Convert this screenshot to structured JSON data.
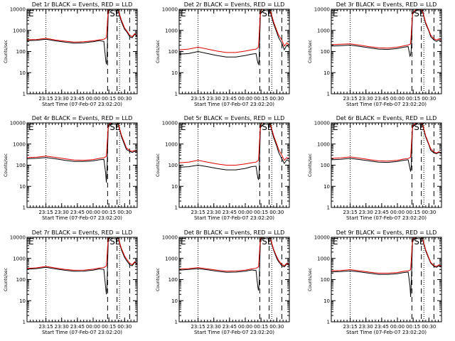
{
  "colors": {
    "events": "#000000",
    "lld": "#e00000",
    "axes": "#000000",
    "background": "#ffffff"
  },
  "layout": {
    "columns": 3,
    "rows": 3
  },
  "shared": {
    "x_tick_labels": [
      "23:15",
      "23:30",
      "23:45",
      "00:00",
      "00:15",
      "00:30"
    ],
    "x_tick_hours": [
      23.25,
      23.5,
      23.75,
      24.0,
      24.25,
      24.5
    ],
    "x_range_hours": [
      22.95,
      24.7
    ],
    "y_tick_labels": [
      "1",
      "10",
      "100",
      "1000",
      "10000"
    ],
    "y_tick_values": [
      1,
      10,
      100,
      1000,
      10000
    ],
    "y_range": [
      1,
      10000
    ],
    "y_scale": "log",
    "xlabel": "Start Time (07-Feb-07 23:02:20)",
    "ylabel": "Counts/sec",
    "dotted_line_hours": [
      23.25,
      24.42
    ],
    "dashed_line_hours": [
      24.23,
      24.38,
      24.58
    ],
    "annotations": [
      "E",
      "SE"
    ]
  },
  "chart_data": [
    {
      "type": "line",
      "title": "Det 1r BLACK = Events, RED = LLD",
      "series": [
        {
          "name": "Events",
          "color": "#000000",
          "x": [
            22.95,
            23.1,
            23.25,
            23.4,
            23.55,
            23.7,
            23.85,
            24.0,
            24.1,
            24.17,
            24.2,
            24.21,
            24.22,
            24.24,
            24.3,
            24.36,
            24.4,
            24.45,
            24.5,
            24.53,
            24.58,
            24.62,
            24.66,
            24.7
          ],
          "y": [
            330,
            340,
            380,
            320,
            280,
            250,
            260,
            290,
            330,
            300,
            40,
            25,
            45,
            8000,
            11000,
            12000,
            8000,
            2500,
            1100,
            900,
            500,
            450,
            650,
            500
          ]
        },
        {
          "name": "LLD",
          "color": "#e00000",
          "x": [
            22.95,
            23.1,
            23.25,
            23.4,
            23.55,
            23.7,
            23.85,
            24.0,
            24.1,
            24.17,
            24.21,
            24.24,
            24.3,
            24.36,
            24.4,
            24.45,
            24.5,
            24.53,
            24.58,
            24.62,
            24.66,
            24.7
          ],
          "y": [
            360,
            370,
            420,
            350,
            310,
            280,
            290,
            320,
            360,
            380,
            450,
            9000,
            12000,
            13000,
            9000,
            3000,
            1300,
            1000,
            600,
            500,
            700,
            550
          ]
        }
      ]
    },
    {
      "type": "line",
      "title": "Det 2r BLACK = Events, RED = LLD",
      "series": [
        {
          "name": "Events",
          "color": "#000000",
          "x": [
            22.95,
            23.1,
            23.25,
            23.4,
            23.55,
            23.7,
            23.85,
            24.0,
            24.1,
            24.17,
            24.2,
            24.21,
            24.22,
            24.24,
            24.3,
            24.36,
            24.4,
            24.45,
            24.5,
            24.53,
            24.58,
            24.62,
            24.66,
            24.7
          ],
          "y": [
            75,
            80,
            100,
            80,
            65,
            55,
            55,
            65,
            75,
            80,
            30,
            25,
            40,
            6000,
            10000,
            11000,
            7000,
            2000,
            800,
            450,
            250,
            120,
            200,
            150
          ]
        },
        {
          "name": "LLD",
          "color": "#e00000",
          "x": [
            22.95,
            23.1,
            23.25,
            23.4,
            23.55,
            23.7,
            23.85,
            24.0,
            24.1,
            24.17,
            24.21,
            24.24,
            24.3,
            24.36,
            24.4,
            24.45,
            24.5,
            24.53,
            24.58,
            24.62,
            24.66,
            24.7
          ],
          "y": [
            120,
            130,
            160,
            130,
            105,
            90,
            90,
            105,
            120,
            130,
            160,
            8000,
            12000,
            13000,
            8500,
            2500,
            1000,
            600,
            350,
            180,
            260,
            200
          ]
        }
      ]
    },
    {
      "type": "line",
      "title": "Det 3r BLACK = Events, RED = LLD",
      "series": [
        {
          "name": "Events",
          "color": "#000000",
          "x": [
            22.95,
            23.1,
            23.25,
            23.4,
            23.55,
            23.7,
            23.85,
            24.0,
            24.1,
            24.17,
            24.2,
            24.21,
            24.22,
            24.24,
            24.3,
            24.36,
            24.4,
            24.45,
            24.5,
            24.53,
            24.58,
            24.62,
            24.66,
            24.7
          ],
          "y": [
            180,
            190,
            200,
            175,
            150,
            130,
            125,
            140,
            160,
            170,
            60,
            70,
            120,
            6000,
            9000,
            10000,
            7500,
            2000,
            900,
            500,
            350,
            300,
            350,
            300
          ]
        },
        {
          "name": "LLD",
          "color": "#e00000",
          "x": [
            22.95,
            23.1,
            23.25,
            23.4,
            23.55,
            23.7,
            23.85,
            24.0,
            24.1,
            24.17,
            24.21,
            24.24,
            24.3,
            24.36,
            24.4,
            24.45,
            24.5,
            24.53,
            24.58,
            24.62,
            24.66,
            24.7
          ],
          "y": [
            210,
            220,
            230,
            200,
            170,
            150,
            145,
            160,
            185,
            200,
            230,
            7000,
            10000,
            11000,
            8000,
            2300,
            1000,
            600,
            400,
            350,
            400,
            350
          ]
        }
      ]
    },
    {
      "type": "line",
      "title": "Det 4r BLACK = Events, RED = LLD",
      "series": [
        {
          "name": "Events",
          "color": "#000000",
          "x": [
            22.95,
            23.1,
            23.25,
            23.4,
            23.55,
            23.7,
            23.85,
            24.0,
            24.1,
            24.17,
            24.2,
            24.21,
            24.22,
            24.24,
            24.3,
            24.36,
            24.4,
            24.45,
            24.5,
            24.53,
            24.58,
            24.62,
            24.66,
            24.7
          ],
          "y": [
            200,
            210,
            230,
            200,
            170,
            150,
            150,
            160,
            180,
            190,
            40,
            15,
            60,
            7000,
            10000,
            11000,
            8000,
            2200,
            900,
            550,
            450,
            400,
            450,
            400
          ]
        },
        {
          "name": "LLD",
          "color": "#e00000",
          "x": [
            22.95,
            23.1,
            23.25,
            23.4,
            23.55,
            23.7,
            23.85,
            24.0,
            24.1,
            24.17,
            24.21,
            24.24,
            24.3,
            24.36,
            24.4,
            24.45,
            24.5,
            24.53,
            24.58,
            24.62,
            24.66,
            24.7
          ],
          "y": [
            230,
            240,
            270,
            235,
            200,
            175,
            170,
            185,
            210,
            225,
            260,
            8000,
            11000,
            12000,
            9000,
            2600,
            1100,
            650,
            500,
            450,
            500,
            450
          ]
        }
      ]
    },
    {
      "type": "line",
      "title": "Det 5r BLACK = Events, RED = LLD",
      "series": [
        {
          "name": "Events",
          "color": "#000000",
          "x": [
            22.95,
            23.1,
            23.25,
            23.4,
            23.55,
            23.7,
            23.85,
            24.0,
            24.1,
            24.17,
            24.2,
            24.21,
            24.22,
            24.24,
            24.3,
            24.36,
            24.4,
            24.45,
            24.5,
            24.53,
            24.58,
            24.62,
            24.66,
            24.7
          ],
          "y": [
            80,
            85,
            100,
            85,
            70,
            60,
            60,
            70,
            85,
            90,
            25,
            20,
            40,
            6000,
            10000,
            11000,
            7500,
            2000,
            800,
            400,
            200,
            120,
            180,
            150
          ]
        },
        {
          "name": "LLD",
          "color": "#e00000",
          "x": [
            22.95,
            23.1,
            23.25,
            23.4,
            23.55,
            23.7,
            23.85,
            24.0,
            24.1,
            24.17,
            24.21,
            24.24,
            24.3,
            24.36,
            24.4,
            24.45,
            24.5,
            24.53,
            24.58,
            24.62,
            24.66,
            24.7
          ],
          "y": [
            130,
            140,
            170,
            140,
            115,
            100,
            100,
            115,
            130,
            140,
            170,
            8000,
            12000,
            13000,
            8500,
            2500,
            1000,
            550,
            300,
            170,
            230,
            200
          ]
        }
      ]
    },
    {
      "type": "line",
      "title": "Det 6r BLACK = Events, RED = LLD",
      "series": [
        {
          "name": "Events",
          "color": "#000000",
          "x": [
            22.95,
            23.1,
            23.25,
            23.4,
            23.55,
            23.7,
            23.85,
            24.0,
            24.1,
            24.17,
            24.2,
            24.21,
            24.22,
            24.24,
            24.3,
            24.36,
            24.4,
            24.45,
            24.5,
            24.53,
            24.58,
            24.62,
            24.66,
            24.7
          ],
          "y": [
            180,
            190,
            210,
            185,
            160,
            140,
            135,
            150,
            170,
            180,
            70,
            50,
            90,
            6500,
            9500,
            10500,
            7500,
            2100,
            900,
            500,
            380,
            350,
            400,
            350
          ]
        },
        {
          "name": "LLD",
          "color": "#e00000",
          "x": [
            22.95,
            23.1,
            23.25,
            23.4,
            23.55,
            23.7,
            23.85,
            24.0,
            24.1,
            24.17,
            24.21,
            24.24,
            24.3,
            24.36,
            24.4,
            24.45,
            24.5,
            24.53,
            24.58,
            24.62,
            24.66,
            24.7
          ],
          "y": [
            210,
            220,
            245,
            215,
            185,
            160,
            155,
            170,
            195,
            205,
            240,
            7500,
            10500,
            11500,
            8500,
            2400,
            1000,
            600,
            420,
            380,
            430,
            380
          ]
        }
      ]
    },
    {
      "type": "line",
      "title": "Det 7r BLACK = Events, RED = LLD",
      "series": [
        {
          "name": "Events",
          "color": "#000000",
          "x": [
            22.95,
            23.1,
            23.25,
            23.4,
            23.55,
            23.7,
            23.85,
            24.0,
            24.1,
            24.17,
            24.2,
            24.21,
            24.22,
            24.24,
            24.3,
            24.36,
            24.4,
            24.45,
            24.5,
            24.53,
            24.58,
            24.62,
            24.66,
            24.7
          ],
          "y": [
            310,
            330,
            380,
            320,
            275,
            245,
            250,
            280,
            320,
            300,
            40,
            20,
            50,
            8000,
            11000,
            12000,
            8500,
            2500,
            1100,
            800,
            500,
            450,
            650,
            500
          ]
        },
        {
          "name": "LLD",
          "color": "#e00000",
          "x": [
            22.95,
            23.1,
            23.25,
            23.4,
            23.55,
            23.7,
            23.85,
            24.0,
            24.1,
            24.17,
            24.21,
            24.24,
            24.3,
            24.36,
            24.4,
            24.45,
            24.5,
            24.53,
            24.58,
            24.62,
            24.66,
            24.7
          ],
          "y": [
            340,
            360,
            420,
            355,
            305,
            275,
            280,
            310,
            350,
            370,
            440,
            9000,
            12000,
            13000,
            9000,
            2900,
            1300,
            950,
            600,
            500,
            700,
            550
          ]
        }
      ]
    },
    {
      "type": "line",
      "title": "Det 8r BLACK = Events, RED = LLD",
      "series": [
        {
          "name": "Events",
          "color": "#000000",
          "x": [
            22.95,
            23.1,
            23.25,
            23.4,
            23.55,
            23.7,
            23.85,
            24.0,
            24.1,
            24.17,
            24.2,
            24.21,
            24.22,
            24.24,
            24.3,
            24.36,
            24.4,
            24.45,
            24.5,
            24.53,
            24.58,
            24.62,
            24.66,
            24.7
          ],
          "y": [
            280,
            300,
            330,
            290,
            250,
            220,
            225,
            250,
            285,
            270,
            45,
            30,
            60,
            7500,
            10500,
            11500,
            8000,
            2400,
            1000,
            700,
            450,
            400,
            550,
            450
          ]
        },
        {
          "name": "LLD",
          "color": "#e00000",
          "x": [
            22.95,
            23.1,
            23.25,
            23.4,
            23.55,
            23.7,
            23.85,
            24.0,
            24.1,
            24.17,
            24.21,
            24.24,
            24.3,
            24.36,
            24.4,
            24.45,
            24.5,
            24.53,
            24.58,
            24.62,
            24.66,
            24.7
          ],
          "y": [
            310,
            330,
            370,
            320,
            280,
            250,
            255,
            280,
            320,
            340,
            400,
            8500,
            11500,
            12500,
            8800,
            2700,
            1200,
            800,
            520,
            450,
            600,
            500
          ]
        }
      ]
    },
    {
      "type": "line",
      "title": "Det 9r BLACK = Events, RED = LLD",
      "series": [
        {
          "name": "Events",
          "color": "#000000",
          "x": [
            22.95,
            23.1,
            23.25,
            23.4,
            23.55,
            23.7,
            23.85,
            24.0,
            24.1,
            24.17,
            24.2,
            24.21,
            24.22,
            24.24,
            24.3,
            24.36,
            24.4,
            24.45,
            24.5,
            24.53,
            24.58,
            24.62,
            24.66,
            24.7
          ],
          "y": [
            230,
            240,
            260,
            230,
            200,
            175,
            175,
            190,
            215,
            225,
            50,
            15,
            70,
            7000,
            10000,
            11000,
            8000,
            2200,
            950,
            600,
            420,
            380,
            450,
            400
          ]
        },
        {
          "name": "LLD",
          "color": "#e00000",
          "x": [
            22.95,
            23.1,
            23.25,
            23.4,
            23.55,
            23.7,
            23.85,
            24.0,
            24.1,
            24.17,
            24.21,
            24.24,
            24.3,
            24.36,
            24.4,
            24.45,
            24.5,
            24.53,
            24.58,
            24.62,
            24.66,
            24.7
          ],
          "y": [
            260,
            270,
            295,
            260,
            225,
            200,
            200,
            215,
            245,
            255,
            290,
            8000,
            11000,
            12000,
            8800,
            2500,
            1050,
            650,
            460,
            420,
            500,
            440
          ]
        }
      ]
    }
  ]
}
